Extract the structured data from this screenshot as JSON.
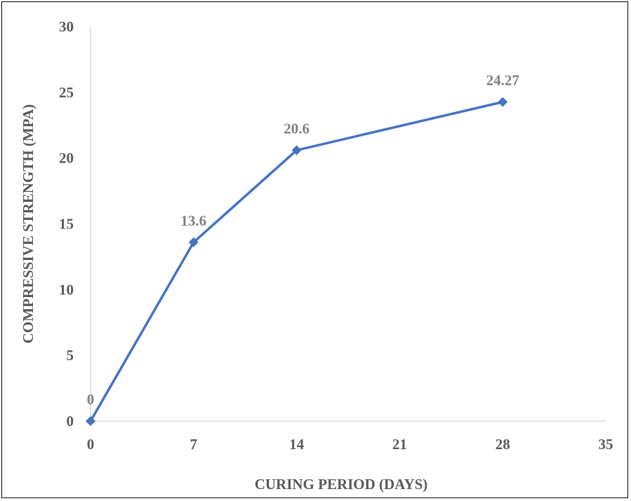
{
  "chart_data": {
    "type": "line",
    "title": "",
    "xlabel": "CURING PERIOD (DAYS)",
    "ylabel": "COMPRESSIVE STRENGTH (MPA)",
    "xlim": [
      0,
      35
    ],
    "ylim": [
      0,
      30
    ],
    "x_ticks": [
      0,
      7,
      14,
      21,
      28,
      35
    ],
    "y_ticks": [
      0,
      5,
      10,
      15,
      20,
      25,
      30
    ],
    "grid": false,
    "legend": "none",
    "marker": "diamond",
    "series": [
      {
        "color": "#4472c4",
        "x": [
          0,
          7,
          14,
          28
        ],
        "y": [
          0,
          13.6,
          20.6,
          24.27
        ],
        "labels": [
          "0",
          "13.6",
          "20.6",
          "24.27"
        ]
      }
    ]
  }
}
